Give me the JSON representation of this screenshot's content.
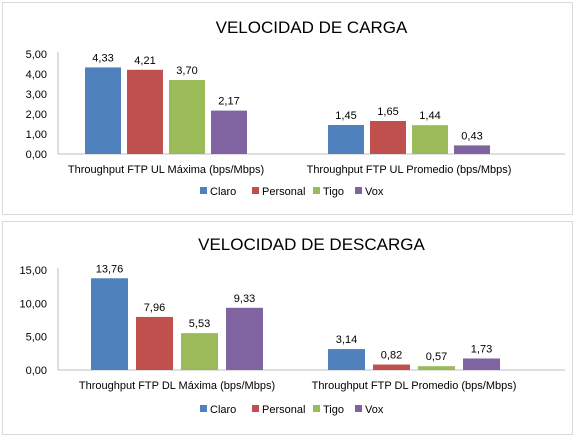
{
  "colors": {
    "Claro": "#4f81bd",
    "Personal": "#c0504d",
    "Tigo": "#9bbb59",
    "Vox": "#8064a2"
  },
  "chart_data": [
    {
      "type": "bar",
      "title": "VELOCIDAD DE CARGA",
      "xlabel": "",
      "ylabel": "",
      "categories": [
        "Throughput FTP UL Máxima (bps/Mbps)",
        "Throughput FTP UL Promedio (bps/Mbps)"
      ],
      "series": [
        {
          "name": "Claro",
          "values": [
            4.33,
            1.45
          ],
          "labels": [
            "4,33",
            "1,45"
          ]
        },
        {
          "name": "Personal",
          "values": [
            4.21,
            1.65
          ],
          "labels": [
            "4,21",
            "1,65"
          ]
        },
        {
          "name": "Tigo",
          "values": [
            3.7,
            1.44
          ],
          "labels": [
            "3,70",
            "1,44"
          ]
        },
        {
          "name": "Vox",
          "values": [
            2.17,
            0.43
          ],
          "labels": [
            "2,17",
            "0,43"
          ]
        }
      ],
      "ylim": [
        0,
        5
      ],
      "yticks": [
        0,
        1,
        2,
        3,
        4,
        5
      ],
      "ytick_labels": [
        "0,00",
        "1,00",
        "2,00",
        "3,00",
        "4,00",
        "5,00"
      ],
      "grid": false,
      "legend": "bottom"
    },
    {
      "type": "bar",
      "title": "VELOCIDAD DE DESCARGA",
      "xlabel": "",
      "ylabel": "",
      "categories": [
        "Throughput FTP DL Máxima (bps/Mbps)",
        "Throughput FTP DL Promedio (bps/Mbps)"
      ],
      "series": [
        {
          "name": "Claro",
          "values": [
            13.76,
            3.14
          ],
          "labels": [
            "13,76",
            "3,14"
          ]
        },
        {
          "name": "Personal",
          "values": [
            7.96,
            0.82
          ],
          "labels": [
            "7,96",
            "0,82"
          ]
        },
        {
          "name": "Tigo",
          "values": [
            5.53,
            0.57
          ],
          "labels": [
            "5,53",
            "0,57"
          ]
        },
        {
          "name": "Vox",
          "values": [
            9.33,
            1.73
          ],
          "labels": [
            "9,33",
            "1,73"
          ]
        }
      ],
      "ylim": [
        0,
        15
      ],
      "yticks": [
        0,
        5,
        10,
        15
      ],
      "ytick_labels": [
        "0,00",
        "5,00",
        "10,00",
        "15,00"
      ],
      "grid": false,
      "legend": "bottom"
    }
  ]
}
